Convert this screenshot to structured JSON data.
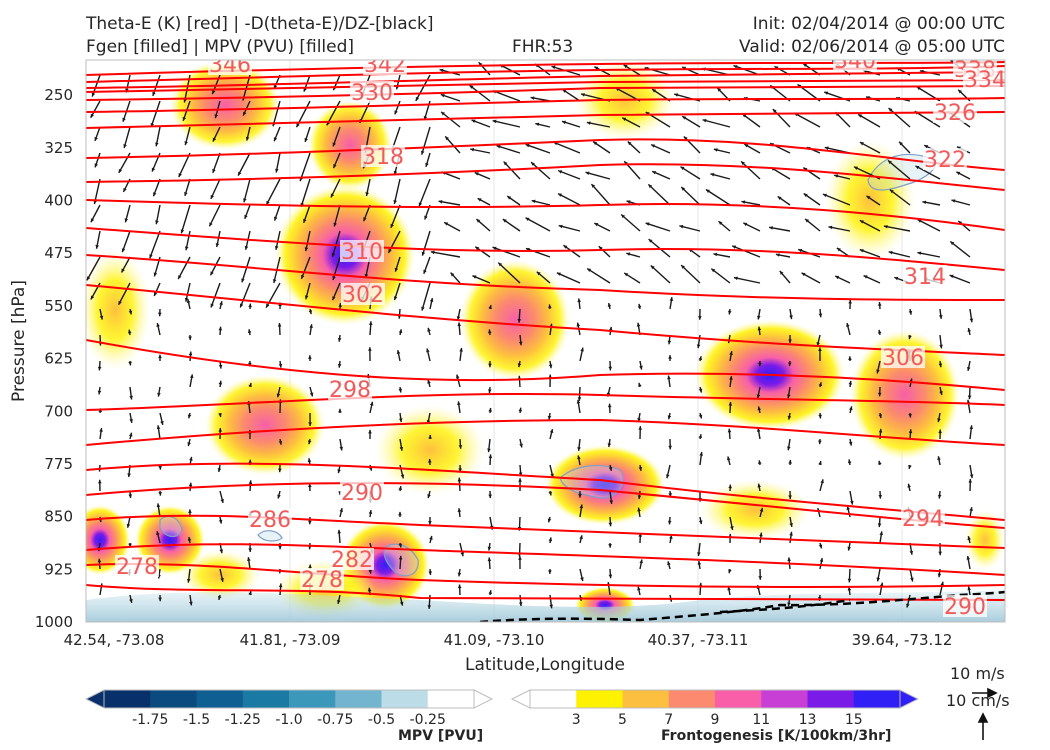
{
  "header": {
    "title_left_1": "Theta-E (K) [red] | -D(theta-E)/DZ-[black]",
    "title_left_2": "Fgen [filled] | MPV (PVU) [filled]",
    "fhr": "FHR:53",
    "init": "Init: 02/04/2014 @ 00:00 UTC",
    "valid": "Valid: 02/06/2014 @ 05:00 UTC"
  },
  "chart_data": {
    "type": "cross-section",
    "ylabel": "Pressure [hPa]",
    "xlabel": "Latitude,Longitude",
    "y_ticks": [
      "250",
      "325",
      "400",
      "475",
      "550",
      "625",
      "700",
      "775",
      "850",
      "925",
      "1000"
    ],
    "ylim": [
      1000,
      200
    ],
    "x_ticks": [
      "42.54, -73.08",
      "41.81, -73.09",
      "41.09, -73.10",
      "40.37, -73.11",
      "39.64, -73.12"
    ],
    "theta_e_labels": [
      "346",
      "342",
      "340",
      "338",
      "334",
      "330",
      "326",
      "322",
      "318",
      "314",
      "310",
      "306",
      "302",
      "298",
      "294",
      "290",
      "290",
      "286",
      "282",
      "278",
      "278"
    ],
    "colorbars": {
      "mpv": {
        "label": "MPV [PVU]",
        "ticks": [
          "-1.75",
          "-1.5",
          "-1.25",
          "-1.0",
          "-0.75",
          "-0.5",
          "-0.25"
        ],
        "colors": [
          "#08306b",
          "#0a4a7f",
          "#0f5f92",
          "#1a7aa3",
          "#3b98bb",
          "#73b4cf",
          "#bcdde8",
          "#ffffff"
        ]
      },
      "fgen": {
        "label": "Frontogenesis [K/100km/3hr]",
        "ticks": [
          "3",
          "5",
          "7",
          "9",
          "11",
          "13",
          "15"
        ],
        "colors": [
          "#ffffff",
          "#fff200",
          "#fdbf3f",
          "#fb8a6e",
          "#f85fa8",
          "#c83fd6",
          "#7a1be8",
          "#3020f5"
        ]
      }
    },
    "vector_scale": {
      "u": "10 m/s",
      "w": "10 cm/s"
    },
    "colors": {
      "theta_e": "#ff0000",
      "theta_e_label": "#f25a5a",
      "vectors": "#1a1a1a"
    }
  }
}
